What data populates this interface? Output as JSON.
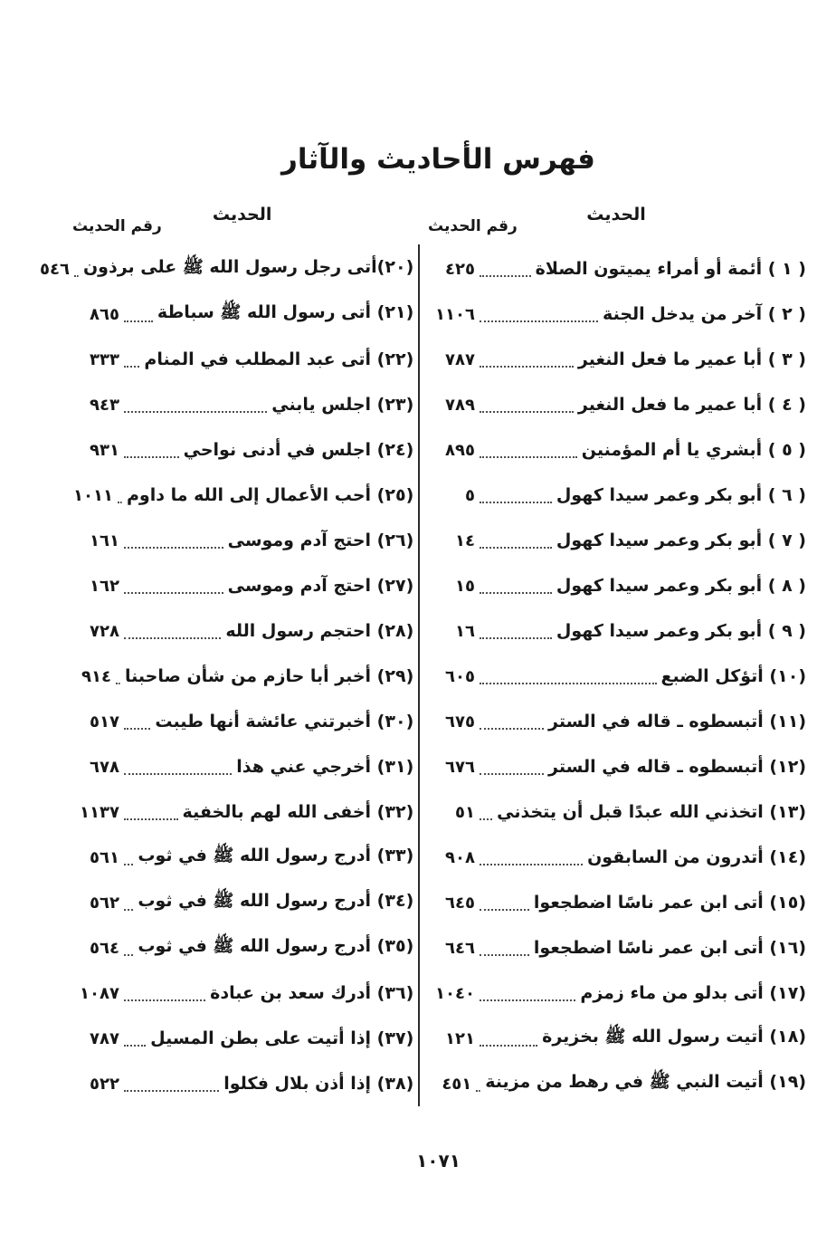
{
  "title": "فهرس الأحاديث والآثار",
  "column_headers": {
    "hadith": "الحديث",
    "number": "رقم الحديث"
  },
  "columns": [
    {
      "side": "right",
      "entries": [
        {
          "label": "( ١ ) أئمة أو أمراء يميتون الصلاة",
          "num": "٤٢٥"
        },
        {
          "label": "( ٢ ) آخر من يدخل الجنة",
          "num": "١١٠٦"
        },
        {
          "label": "( ٣ ) أبا عمير ما فعل النغير",
          "num": "٧٨٧"
        },
        {
          "label": "( ٤ ) أبا عمير ما فعل النغير",
          "num": "٧٨٩"
        },
        {
          "label": "( ٥ ) أبشري يا أم المؤمنين",
          "num": "٨٩٥"
        },
        {
          "label": "( ٦ ) أبو بكر وعمر سيدا كهول",
          "num": "٥"
        },
        {
          "label": "( ٧ ) أبو بكر وعمر سيدا كهول",
          "num": "١٤"
        },
        {
          "label": "( ٨ ) أبو بكر وعمر سيدا كهول",
          "num": "١٥"
        },
        {
          "label": "( ٩ ) أبو بكر وعمر سيدا كهول",
          "num": "١٦"
        },
        {
          "label": "(١٠) أتؤكل الضبع",
          "num": "٦٠٥"
        },
        {
          "label": "(١١) أتبسطوه ـ قاله في الستر",
          "num": "٦٧٥"
        },
        {
          "label": "(١٢) أتبسطوه ـ قاله في الستر",
          "num": "٦٧٦"
        },
        {
          "label": "(١٣) اتخذني الله عبدًا قبل أن يتخذني",
          "num": "٥١"
        },
        {
          "label": "(١٤) أتدرون من السابقون",
          "num": "٩٠٨"
        },
        {
          "label": "(١٥) أتى ابن عمر ناسًا اضطجعوا",
          "num": "٦٤٥"
        },
        {
          "label": "(١٦) أتى ابن عمر ناسًا اضطجعوا",
          "num": "٦٤٦"
        },
        {
          "label": "(١٧) أتى بدلو من ماء زمزم",
          "num": "١٠٤٠"
        },
        {
          "label": "(١٨) أتيت رسول الله ﷺ بخزيرة",
          "num": "١٢١"
        },
        {
          "label": "(١٩) أتيت النبي ﷺ في رهط من مزينة",
          "num": "٤٥١"
        }
      ]
    },
    {
      "side": "left",
      "entries": [
        {
          "label": "(٢٠)أتى رجل رسول الله ﷺ على برذون",
          "num": "٥٤٦"
        },
        {
          "label": "(٢١) أتى رسول الله ﷺ سباطة",
          "num": "٨٦٥"
        },
        {
          "label": "(٢٢) أتى عبد المطلب في المنام",
          "num": "٣٣٣"
        },
        {
          "label": "(٢٣) اجلس يابني",
          "num": "٩٤٣"
        },
        {
          "label": "(٢٤) اجلس في أدنى نواحي",
          "num": "٩٣١"
        },
        {
          "label": "(٢٥) أحب الأعمال إلى الله ما داوم",
          "num": "١٠١١"
        },
        {
          "label": "(٢٦) احتج آدم وموسى",
          "num": "١٦١"
        },
        {
          "label": "(٢٧) احتج آدم وموسى",
          "num": "١٦٢"
        },
        {
          "label": "(٢٨) احتجم رسول الله",
          "num": "٧٢٨"
        },
        {
          "label": "(٢٩) أخبر أبا حازم من شأن صاحبنا",
          "num": "٩١٤"
        },
        {
          "label": "(٣٠) أخبرتني عائشة أنها طيبت",
          "num": "٥١٧"
        },
        {
          "label": "(٣١) أخرجي عني هذا",
          "num": "٦٧٨"
        },
        {
          "label": "(٣٢) أخفى الله لهم بالخفية",
          "num": "١١٣٧"
        },
        {
          "label": "(٣٣) أدرج رسول الله ﷺ في ثوب",
          "num": "٥٦١"
        },
        {
          "label": "(٣٤) أدرج رسول الله ﷺ في ثوب",
          "num": "٥٦٢"
        },
        {
          "label": "(٣٥) أدرج رسول الله ﷺ في ثوب",
          "num": "٥٦٤"
        },
        {
          "label": "(٣٦) أدرك سعد بن عبادة",
          "num": "١٠٨٧"
        },
        {
          "label": "(٣٧) إذا أتيت على بطن المسيل",
          "num": "٧٨٧"
        },
        {
          "label": "(٣٨) إذا أذن بلال فكلوا",
          "num": "٥٢٢"
        }
      ]
    }
  ],
  "page_number": "١٠٧١",
  "colors": {
    "ink": "#171717",
    "paper": "#ffffff",
    "leader_dots": "#4d4d4d",
    "divider": "#2b2b2b"
  }
}
